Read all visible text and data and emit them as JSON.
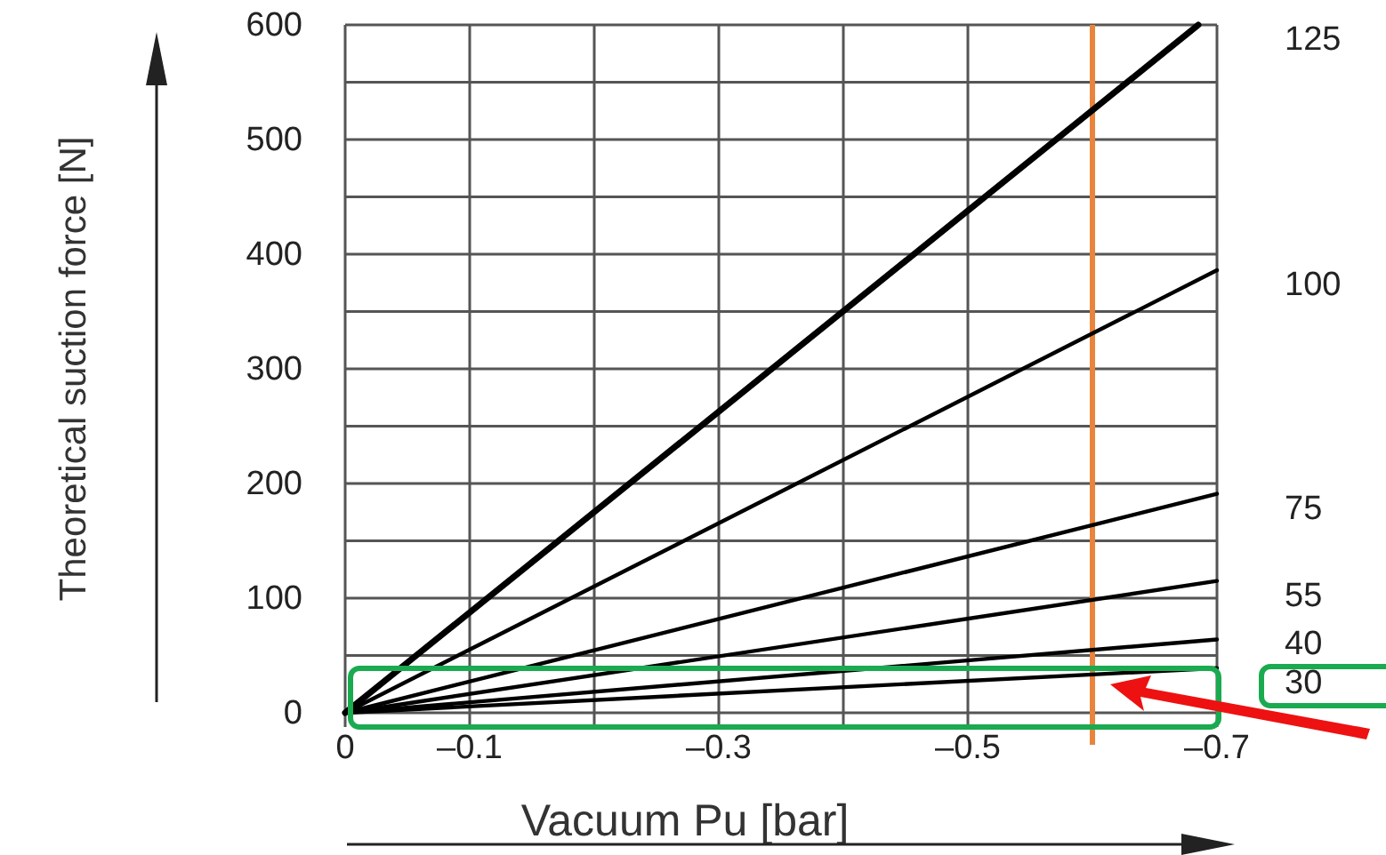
{
  "chart_data": {
    "type": "line",
    "xlabel": "Vacuum Pu [bar]",
    "ylabel": "Theoretical suction force [N]",
    "xlim": [
      0,
      -0.7
    ],
    "ylim": [
      0,
      600
    ],
    "xticks": [
      0,
      {
        "value": -0.1,
        "label": "–0.1"
      },
      {
        "value": -0.2,
        "label": null
      },
      {
        "value": -0.3,
        "label": "–0.3"
      },
      {
        "value": -0.4,
        "label": null
      },
      {
        "value": -0.5,
        "label": "–0.5"
      },
      {
        "value": -0.6,
        "label": null
      },
      {
        "value": -0.7,
        "label": "–0.7"
      }
    ],
    "yticks": [
      0,
      {
        "value": 50,
        "label": null
      },
      100,
      {
        "value": 150,
        "label": null
      },
      200,
      {
        "value": 250,
        "label": null
      },
      300,
      {
        "value": 350,
        "label": null
      },
      400,
      {
        "value": 450,
        "label": null
      },
      500,
      {
        "value": 550,
        "label": null
      },
      600
    ],
    "grid": true,
    "legend": false,
    "marker": "none",
    "line_style": "solid",
    "series": [
      {
        "name": "125",
        "color": "#000000",
        "x": [
          0,
          -0.685
        ],
        "values": [
          0,
          600
        ]
      },
      {
        "name": "100",
        "color": "#000000",
        "x": [
          0,
          -0.7
        ],
        "values": [
          0,
          386
        ]
      },
      {
        "name": "75",
        "color": "#000000",
        "x": [
          0,
          -0.7
        ],
        "values": [
          0,
          191
        ]
      },
      {
        "name": "55",
        "color": "#000000",
        "x": [
          0,
          -0.7
        ],
        "values": [
          0,
          115
        ]
      },
      {
        "name": "40",
        "color": "#000000",
        "x": [
          0,
          -0.7
        ],
        "values": [
          0,
          64
        ]
      },
      {
        "name": "30",
        "color": "#000000",
        "x": [
          0,
          -0.7
        ],
        "values": [
          0,
          39
        ]
      }
    ],
    "ref_lines": [
      {
        "axis": "x",
        "value": -0.6,
        "color": "#e8843c"
      }
    ]
  }
}
